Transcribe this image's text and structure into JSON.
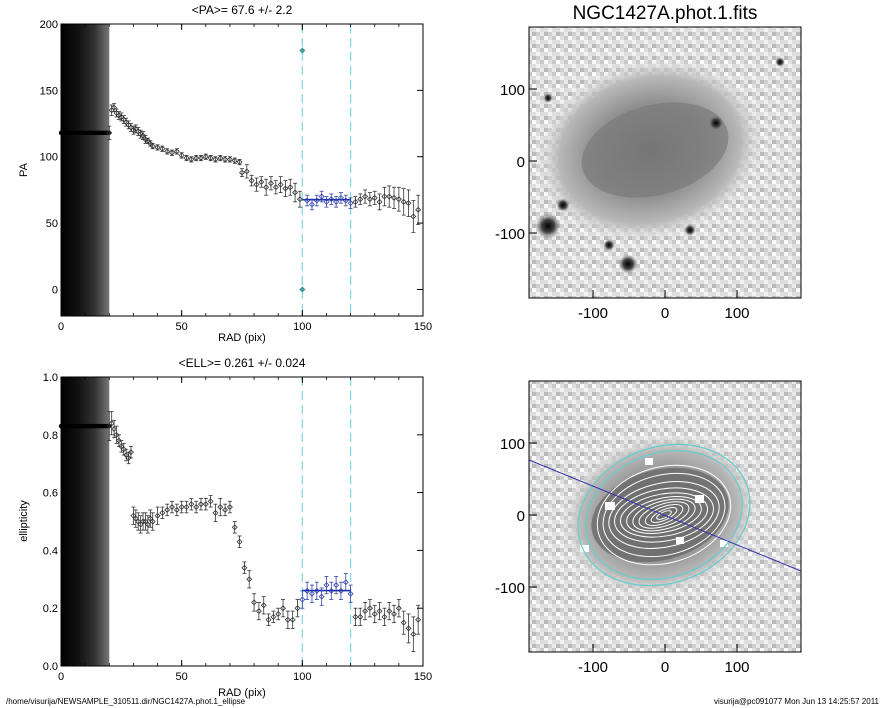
{
  "footer": {
    "path": "/home/visurija/NEWSAMPLE_310511.dir/NGC1427A.phot.1_ellipse",
    "user_date": "visurija@pc091077  Mon Jun 13 14:25:57 2011"
  },
  "images": {
    "title": "NGC1427A.phot.1.fits",
    "xticks": [
      "-100",
      "0",
      "100"
    ],
    "yticks": [
      "100",
      "0",
      "-100"
    ]
  },
  "chart_data": [
    {
      "type": "scatter",
      "title": "<PA>=  67.6 +/-   2.2",
      "xlabel": "RAD (pix)",
      "ylabel": "PA",
      "xlim": [
        0,
        150
      ],
      "ylim": [
        -20,
        200
      ],
      "xticks": [
        0,
        50,
        100,
        150
      ],
      "yticks": [
        0,
        50,
        100,
        150,
        200
      ],
      "xtick_labels": [
        "0",
        "50",
        "100",
        "150"
      ],
      "ytick_labels": [
        "0",
        "50",
        "100",
        "150",
        "200"
      ],
      "shaded_range": [
        0,
        20
      ],
      "vlines": [
        100,
        120
      ],
      "mean": 67.6,
      "mean_range": [
        100,
        120
      ],
      "inner_points": {
        "y": 118,
        "x_range": [
          0,
          20
        ]
      },
      "x": [
        20,
        21,
        22,
        23,
        24,
        25,
        26,
        27,
        28,
        29,
        30,
        31,
        32,
        33,
        34,
        35,
        36,
        37,
        38,
        40,
        42,
        44,
        46,
        48,
        50,
        52,
        54,
        56,
        58,
        60,
        62,
        64,
        66,
        68,
        70,
        72,
        74,
        75,
        77,
        79,
        81,
        83,
        85,
        87,
        89,
        91,
        93,
        95,
        97,
        99,
        100,
        100,
        102,
        104,
        106,
        108,
        110,
        112,
        114,
        116,
        118,
        120,
        122,
        124,
        126,
        128,
        130,
        132,
        134,
        136,
        138,
        140,
        142,
        144,
        146,
        148
      ],
      "y": [
        118,
        135,
        137,
        133,
        131,
        130,
        128,
        126,
        124,
        122,
        120,
        121,
        119,
        117,
        116,
        113,
        112,
        110,
        108,
        107,
        106,
        104,
        103,
        104,
        101,
        99,
        98,
        99,
        99,
        100,
        99,
        98,
        99,
        98,
        98,
        97,
        96,
        88,
        89,
        82,
        79,
        81,
        77,
        80,
        77,
        79,
        76,
        77,
        73,
        68,
        180,
        0,
        67,
        64,
        67,
        70,
        66,
        68,
        66,
        69,
        67,
        65,
        66,
        68,
        70,
        68,
        69,
        66,
        70,
        70,
        69,
        68,
        66,
        65,
        55,
        60
      ],
      "yerr": [
        5,
        4,
        3,
        3,
        3,
        3,
        3,
        3,
        3,
        3,
        3,
        3,
        3,
        3,
        3,
        3,
        2,
        2,
        2,
        2,
        2,
        2,
        2,
        2,
        2,
        2,
        2,
        2,
        2,
        2,
        2,
        2,
        2,
        2,
        2,
        2,
        2,
        3,
        5,
        4,
        5,
        4,
        6,
        5,
        5,
        6,
        6,
        6,
        7,
        6,
        0,
        0,
        4,
        4,
        4,
        4,
        4,
        4,
        4,
        4,
        4,
        4,
        4,
        4,
        5,
        5,
        5,
        6,
        7,
        8,
        8,
        9,
        10,
        10,
        12,
        11
      ]
    },
    {
      "type": "scatter",
      "title": "<ELL>= 0.261 +/-  0.024",
      "xlabel": "RAD (pix)",
      "ylabel": "ellipticity",
      "xlim": [
        0,
        150
      ],
      "ylim": [
        0,
        1
      ],
      "xticks": [
        0,
        50,
        100,
        150
      ],
      "yticks": [
        0,
        0.2,
        0.4,
        0.6,
        0.8,
        1.0
      ],
      "xtick_labels": [
        "0",
        "50",
        "100",
        "150"
      ],
      "ytick_labels": [
        "0.0",
        "0.2",
        "0.4",
        "0.6",
        "0.8",
        "1.0"
      ],
      "shaded_range": [
        0,
        20
      ],
      "vlines": [
        100,
        120
      ],
      "mean": 0.261,
      "mean_range": [
        100,
        120
      ],
      "inner_points": {
        "y": 0.83,
        "x_range": [
          0,
          20
        ]
      },
      "x": [
        20,
        21,
        22,
        23,
        24,
        25,
        26,
        27,
        28,
        29,
        30,
        31,
        32,
        33,
        34,
        35,
        36,
        37,
        38,
        40,
        42,
        44,
        46,
        48,
        50,
        52,
        54,
        56,
        58,
        60,
        62,
        64,
        66,
        68,
        70,
        72,
        74,
        76,
        78,
        80,
        82,
        84,
        86,
        88,
        90,
        92,
        94,
        96,
        98,
        100,
        102,
        104,
        106,
        108,
        110,
        112,
        114,
        116,
        118,
        120,
        122,
        124,
        126,
        128,
        130,
        132,
        134,
        136,
        138,
        140,
        142,
        144,
        146,
        148
      ],
      "y": [
        0.83,
        0.84,
        0.82,
        0.8,
        0.78,
        0.76,
        0.75,
        0.73,
        0.72,
        0.74,
        0.52,
        0.51,
        0.5,
        0.49,
        0.5,
        0.5,
        0.49,
        0.51,
        0.5,
        0.52,
        0.53,
        0.54,
        0.55,
        0.54,
        0.55,
        0.55,
        0.56,
        0.55,
        0.56,
        0.56,
        0.57,
        0.53,
        0.55,
        0.54,
        0.55,
        0.48,
        0.43,
        0.34,
        0.3,
        0.22,
        0.19,
        0.21,
        0.16,
        0.17,
        0.18,
        0.2,
        0.16,
        0.16,
        0.2,
        0.23,
        0.26,
        0.25,
        0.26,
        0.24,
        0.28,
        0.26,
        0.28,
        0.26,
        0.29,
        0.25,
        0.17,
        0.17,
        0.19,
        0.2,
        0.18,
        0.19,
        0.17,
        0.19,
        0.18,
        0.2,
        0.15,
        0.13,
        0.11,
        0.16
      ],
      "yerr": [
        0.05,
        0.04,
        0.03,
        0.03,
        0.02,
        0.02,
        0.02,
        0.02,
        0.02,
        0.02,
        0.03,
        0.03,
        0.03,
        0.03,
        0.03,
        0.03,
        0.03,
        0.03,
        0.03,
        0.03,
        0.02,
        0.02,
        0.02,
        0.02,
        0.02,
        0.02,
        0.02,
        0.02,
        0.02,
        0.02,
        0.02,
        0.03,
        0.03,
        0.02,
        0.02,
        0.02,
        0.02,
        0.02,
        0.03,
        0.03,
        0.03,
        0.03,
        0.02,
        0.02,
        0.02,
        0.03,
        0.03,
        0.03,
        0.03,
        0.03,
        0.03,
        0.03,
        0.03,
        0.03,
        0.03,
        0.03,
        0.03,
        0.03,
        0.03,
        0.03,
        0.03,
        0.03,
        0.03,
        0.03,
        0.03,
        0.03,
        0.03,
        0.03,
        0.03,
        0.03,
        0.04,
        0.05,
        0.06,
        0.05
      ]
    }
  ]
}
